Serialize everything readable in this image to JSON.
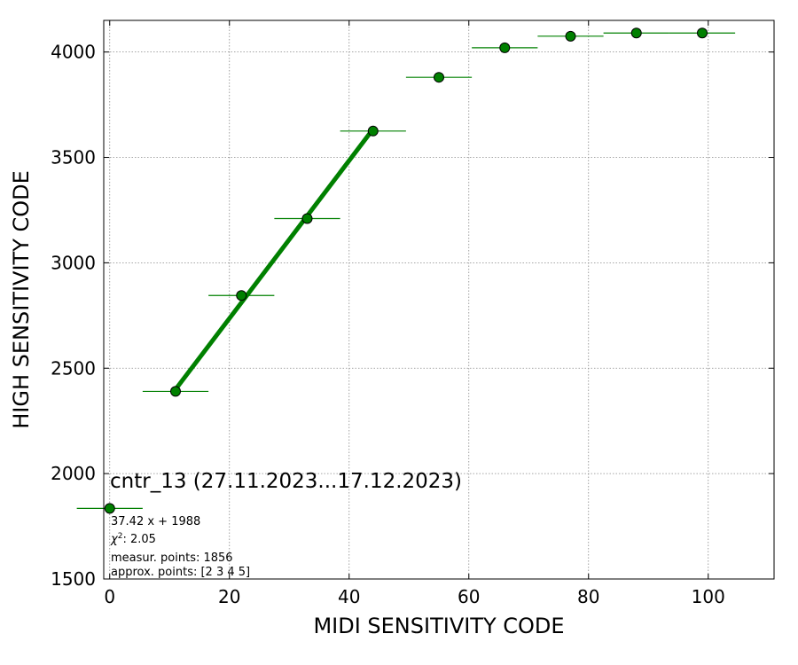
{
  "chart_data": {
    "type": "scatter",
    "xlabel": "MIDI SENSITIVITY CODE",
    "ylabel": "HIGH SENSITIVITY CODE",
    "xlim": [
      -1,
      111
    ],
    "ylim": [
      1500,
      4150
    ],
    "x_ticks": [
      0,
      20,
      40,
      60,
      80,
      100
    ],
    "y_ticks": [
      1500,
      2000,
      2500,
      3000,
      3500,
      4000
    ],
    "grid": true,
    "series": [
      {
        "points": [
          {
            "x": 0,
            "y": 1835,
            "xerr": 5.5
          },
          {
            "x": 11,
            "y": 2390,
            "xerr": 5.5
          },
          {
            "x": 22,
            "y": 2845,
            "xerr": 5.5
          },
          {
            "x": 33,
            "y": 3210,
            "xerr": 5.5
          },
          {
            "x": 44,
            "y": 3625,
            "xerr": 5.5
          },
          {
            "x": 55,
            "y": 3880,
            "xerr": 5.5
          },
          {
            "x": 66,
            "y": 4020,
            "xerr": 5.5
          },
          {
            "x": 77,
            "y": 4075,
            "xerr": 5.5
          },
          {
            "x": 88,
            "y": 4090,
            "xerr": 5.5
          },
          {
            "x": 99,
            "y": 4090,
            "xerr": 5.5
          }
        ]
      }
    ],
    "fit": {
      "slope": 37.42,
      "intercept": 1988,
      "x_range": [
        11,
        44
      ]
    },
    "annotations": {
      "title": "cntr_13 (27.11.2023...17.12.2023)",
      "formula": "37.42 x + 1988",
      "chi2_value": ": 2.05",
      "measur_points": "measur. points: 1856",
      "approx_points": "approx. points: [2 3 4 5]"
    },
    "colors": {
      "marker": "#008000",
      "fit_line": "#008000",
      "grid": "#888888"
    }
  }
}
